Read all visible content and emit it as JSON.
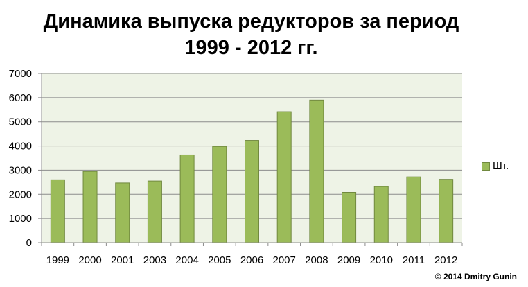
{
  "chart_data": {
    "type": "bar",
    "title_lines": [
      "Динамика выпуска редукторов за период",
      "1999 - 2012 гг."
    ],
    "categories": [
      "1999",
      "2000",
      "2001",
      "2003",
      "2004",
      "2005",
      "2006",
      "2007",
      "2008",
      "2009",
      "2010",
      "2011",
      "2012"
    ],
    "series": [
      {
        "name": "Шт.",
        "color": "#9bbb59",
        "values": [
          2600,
          2950,
          2470,
          2550,
          3630,
          3980,
          4230,
          5420,
          5900,
          2080,
          2320,
          2720,
          2620
        ]
      }
    ],
    "ylim": [
      0,
      7000
    ],
    "yticks": [
      "0",
      "1000",
      "2000",
      "3000",
      "4000",
      "5000",
      "6000",
      "7000"
    ],
    "grid": true,
    "legend_position": "right",
    "plot_background": "#eef3e6"
  },
  "credit": "© 2014 Dmitry Gunin"
}
